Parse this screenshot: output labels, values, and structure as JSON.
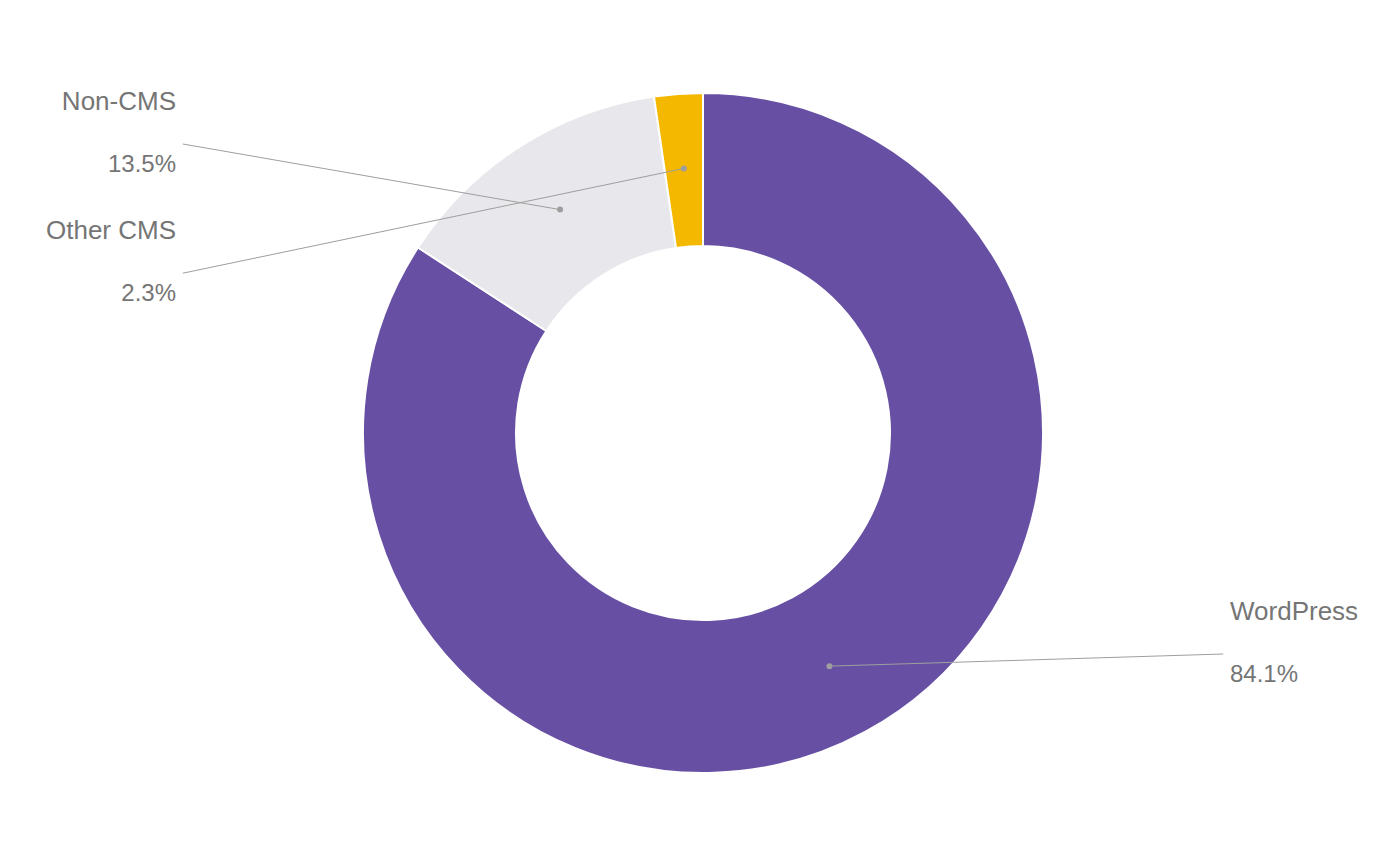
{
  "chart_data": {
    "type": "donut",
    "categories": [
      "WordPress",
      "Non-CMS",
      "Other CMS"
    ],
    "values": [
      84.1,
      13.5,
      2.3
    ],
    "value_labels": [
      "84.1%",
      "13.5%",
      "2.3%"
    ],
    "colors": [
      "#6750a4",
      "#e8e8ec",
      "#f5b800"
    ],
    "data_labels": true
  }
}
